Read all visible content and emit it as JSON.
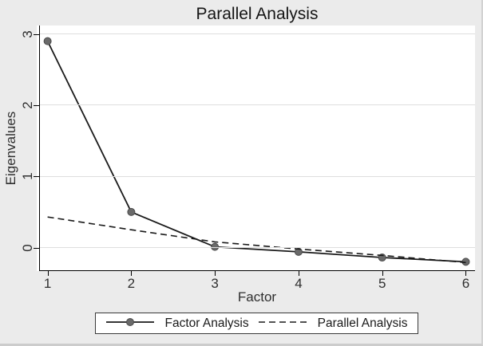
{
  "window": {
    "name": "Stata graph"
  },
  "chart_data": {
    "type": "line",
    "title": "Parallel Analysis",
    "xlabel": "Factor",
    "ylabel": "Eigenvalues",
    "x": [
      1,
      2,
      3,
      4,
      5,
      6
    ],
    "x_ticks": [
      "1",
      "2",
      "3",
      "4",
      "5",
      "6"
    ],
    "y_ticks": [
      0,
      1,
      2,
      3
    ],
    "y_tick_labels": [
      "0",
      "1",
      "2",
      "3"
    ],
    "xlim": [
      0.87,
      6.11
    ],
    "ylim": [
      -0.33,
      3.12
    ],
    "grid": "horizontal-only",
    "legend_position": "bottom-center",
    "series": [
      {
        "name": "Factor Analysis",
        "line": "solid",
        "marker": "circle",
        "values": [
          2.9,
          0.5,
          0.01,
          -0.06,
          -0.14,
          -0.2
        ]
      },
      {
        "name": "Parallel Analysis",
        "line": "dashed",
        "marker": "none",
        "values": [
          0.43,
          0.25,
          0.08,
          -0.02,
          -0.11,
          -0.21
        ]
      }
    ]
  },
  "colors": {
    "figure_background": "#ebebeb",
    "plot_background": "#ffffff",
    "gridline": "#dedede",
    "axis": "#000000",
    "line": "#1a1a1a",
    "marker_fill": "#6a6a6a",
    "marker_edge": "#4a4a4a",
    "text": "#2e2e2e",
    "legend_border": "#3a3a3a"
  },
  "legend": {
    "items": [
      {
        "label": "Factor Analysis",
        "sample": "solid-line-with-circle-marker"
      },
      {
        "label": "Parallel Analysis",
        "sample": "dashed-line"
      }
    ]
  }
}
